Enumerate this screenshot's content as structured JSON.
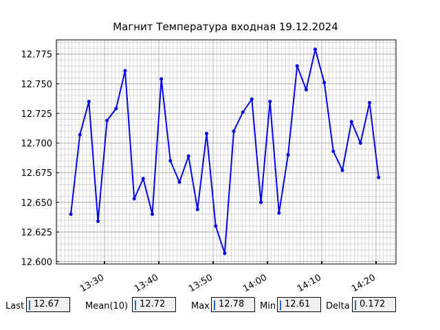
{
  "chart_data": {
    "type": "line",
    "title": "Магнит Температура входная 19.12.2024",
    "x": [
      803.8,
      805.47,
      807.13,
      808.8,
      810.47,
      812.13,
      813.8,
      815.47,
      817.13,
      818.8,
      820.47,
      822.13,
      823.8,
      825.47,
      827.13,
      828.8,
      830.47,
      832.13,
      833.8,
      835.47,
      837.13,
      838.8,
      840.47,
      842.13,
      843.8,
      845.47,
      847.13,
      848.8,
      850.47,
      852.13,
      853.8,
      855.47,
      857.13,
      858.8,
      860.47
    ],
    "series": [
      {
        "name": "Температура входная",
        "color": "#0000ee",
        "values": [
          12.64,
          12.707,
          12.735,
          12.634,
          12.719,
          12.729,
          12.761,
          12.653,
          12.67,
          12.64,
          12.754,
          12.685,
          12.667,
          12.689,
          12.644,
          12.708,
          12.63,
          12.607,
          12.71,
          12.726,
          12.737,
          12.65,
          12.735,
          12.641,
          12.69,
          12.765,
          12.745,
          12.779,
          12.751,
          12.693,
          12.677,
          12.718,
          12.7,
          12.734,
          12.671
        ]
      }
    ],
    "xlim": [
      801.14,
      863.67
    ],
    "xticks": [
      {
        "value": 810,
        "label": "13:30"
      },
      {
        "value": 820,
        "label": "13:40"
      },
      {
        "value": 830,
        "label": "13:50"
      },
      {
        "value": 840,
        "label": "14:00"
      },
      {
        "value": 850,
        "label": "14:10"
      },
      {
        "value": 860,
        "label": "14:20"
      }
    ],
    "ylim": [
      12.598,
      12.787
    ],
    "yticks": [
      {
        "value": 12.6,
        "label": "12.600"
      },
      {
        "value": 12.625,
        "label": "12.625"
      },
      {
        "value": 12.65,
        "label": "12.650"
      },
      {
        "value": 12.675,
        "label": "12.675"
      },
      {
        "value": 12.7,
        "label": "12.700"
      },
      {
        "value": 12.725,
        "label": "12.725"
      },
      {
        "value": 12.75,
        "label": "12.750"
      },
      {
        "value": 12.775,
        "label": "12.775"
      }
    ],
    "grid": true
  },
  "panel": {
    "fields": [
      {
        "label": "Last",
        "value": 12.67
      },
      {
        "label": "Mean(10)",
        "value": 12.72
      },
      {
        "label": "Max",
        "value": 12.78
      },
      {
        "label": "Min",
        "value": 12.61
      },
      {
        "label": "Delta",
        "value": 0.172
      }
    ]
  }
}
